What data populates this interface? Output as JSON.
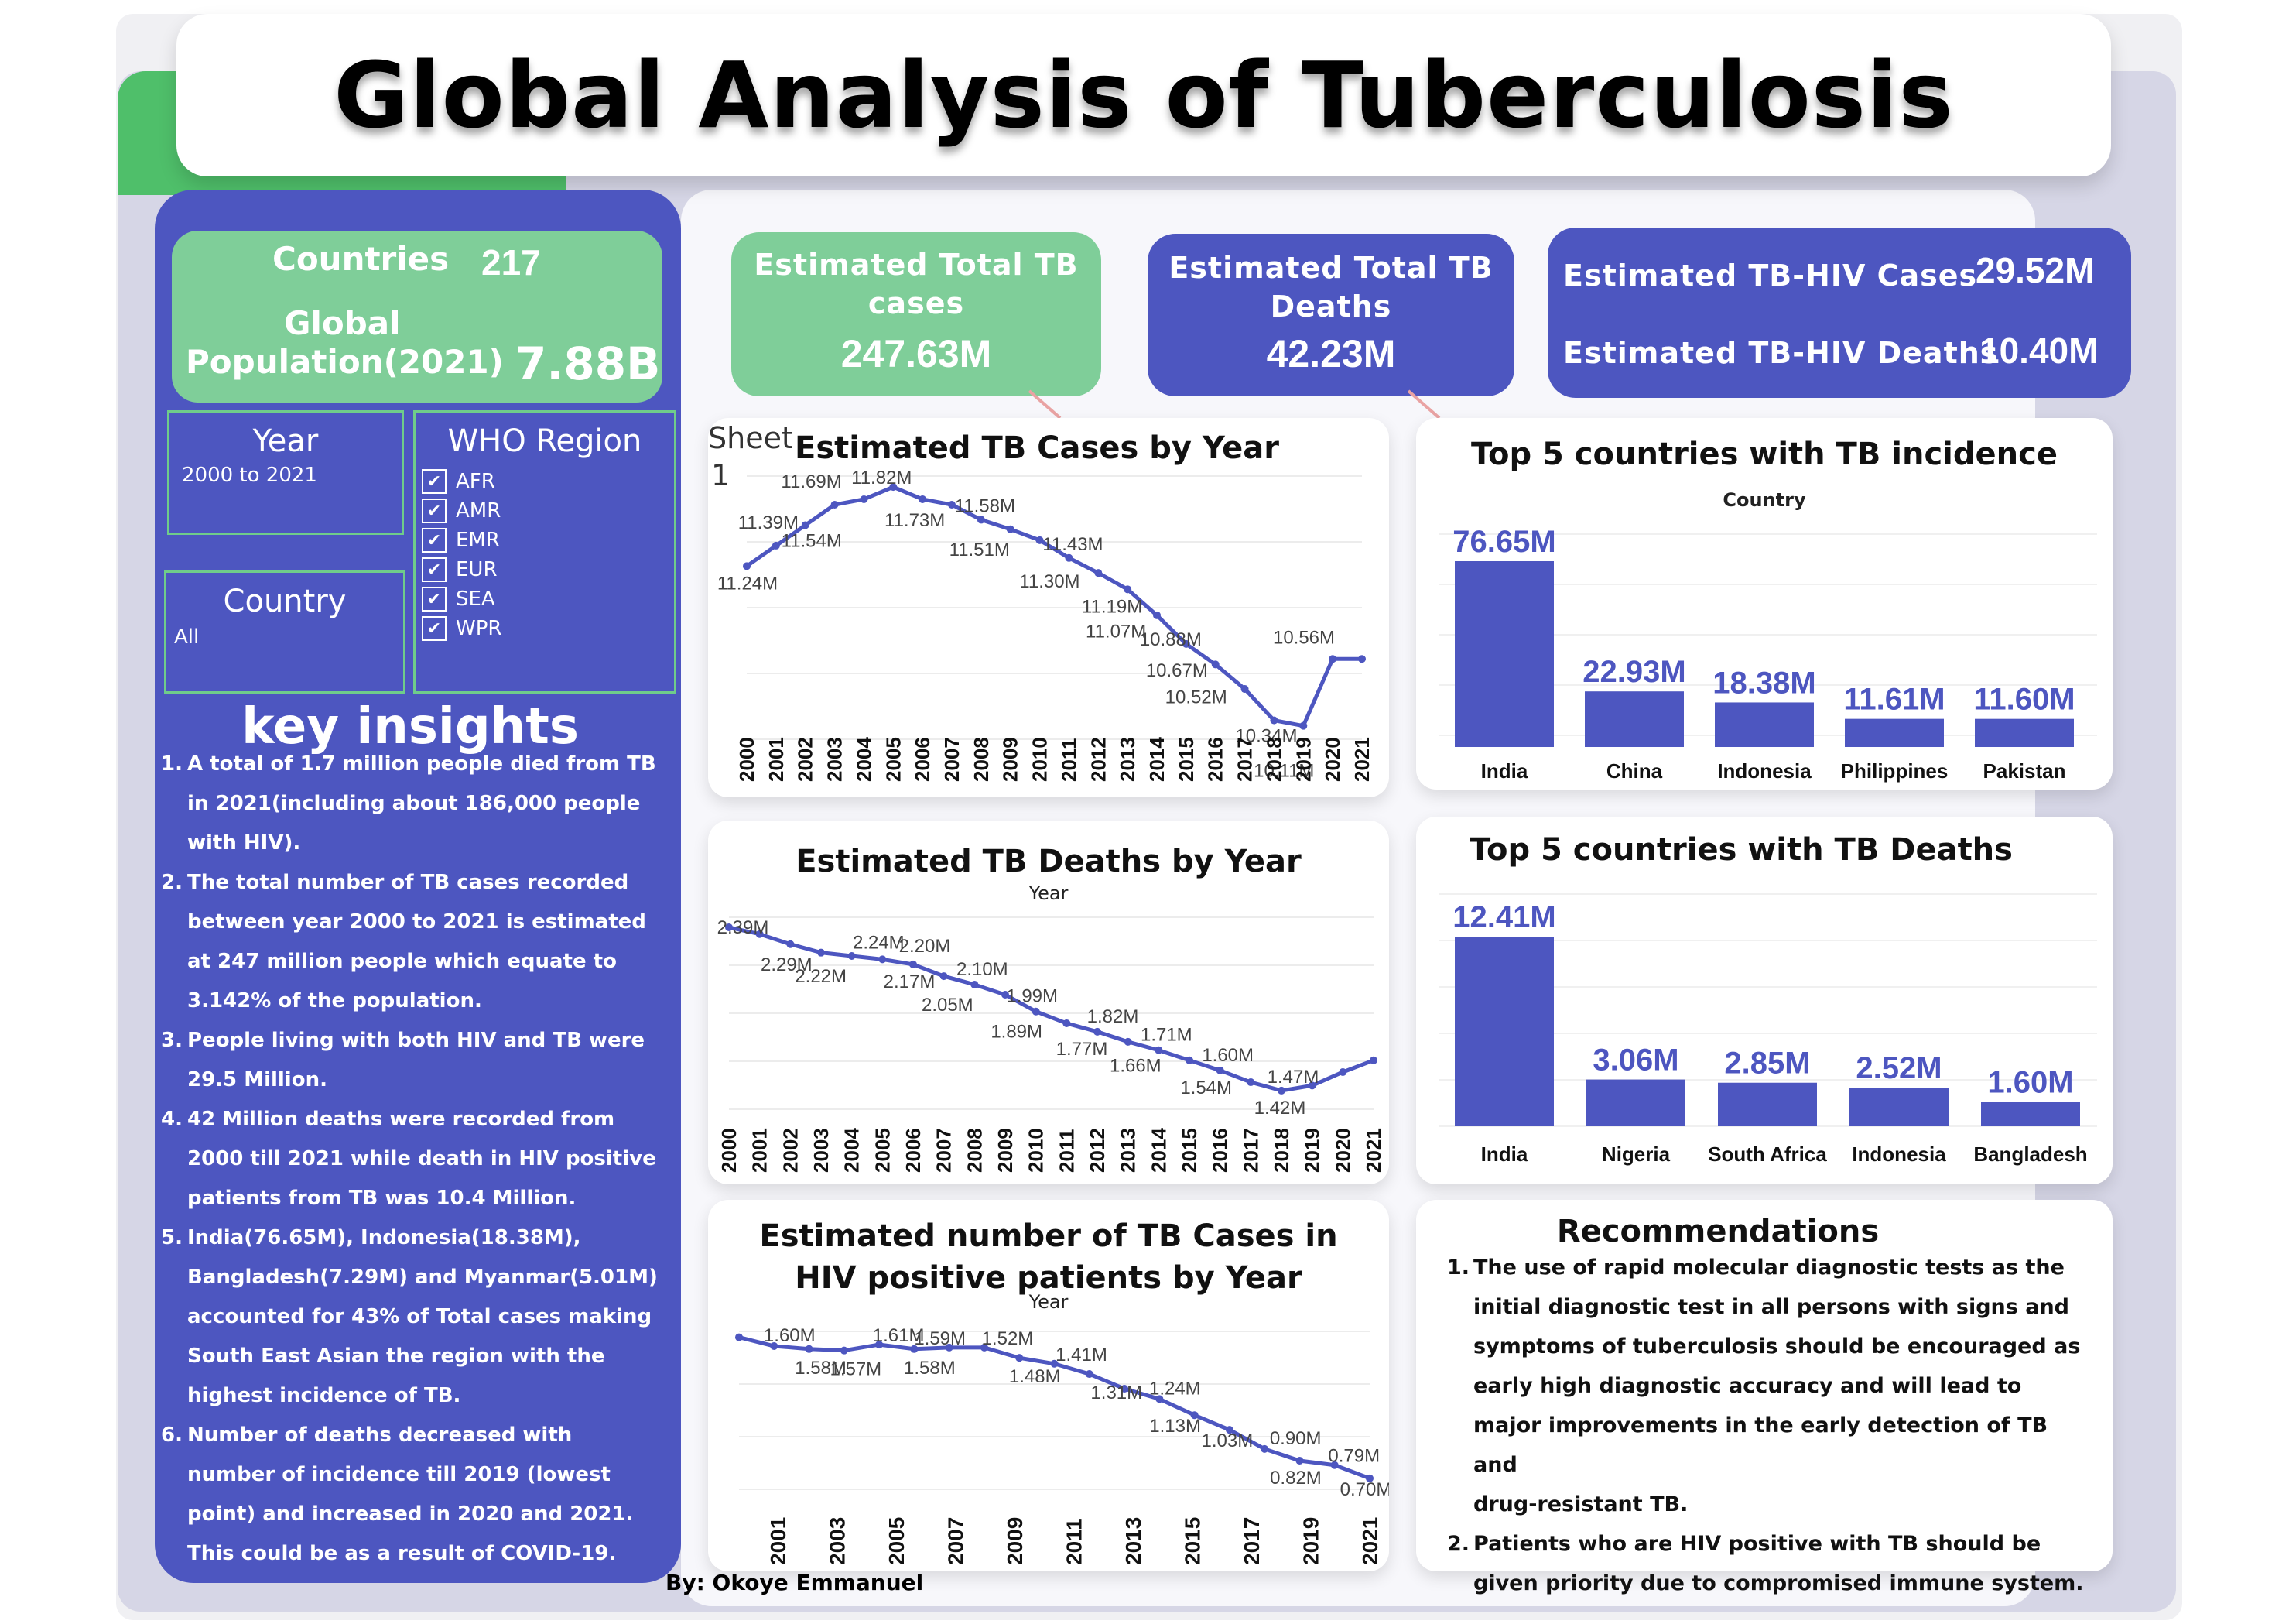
{
  "title": "Global Analysis of Tuberculosis",
  "sidebar": {
    "countries_label": "Countries",
    "countries_value": "217",
    "population_label_1": "Global",
    "population_label_2": "Population(2021)",
    "population_value": "7.88B",
    "year_filter": {
      "title": "Year",
      "value": "2000 to 2021"
    },
    "country_filter": {
      "title": "Country",
      "value": "All"
    },
    "region_filter": {
      "title": "WHO Region",
      "options": [
        "AFR",
        "AMR",
        "EMR",
        "EUR",
        "SEA",
        "WPR"
      ]
    },
    "insights_title": "key insights",
    "insights": [
      {
        "n": "1.",
        "lines": [
          "A total of 1.7 million people died from TB",
          "in 2021(including about 186,000 people",
          "with HIV)."
        ]
      },
      {
        "n": "2.",
        "lines": [
          "The total number of TB cases recorded",
          "between year 2000 to 2021 is estimated",
          "at 247 million people which equate to",
          "3.142% of the population."
        ]
      },
      {
        "n": "3.",
        "lines": [
          "People living with both HIV and TB were",
          "29.5 Million."
        ]
      },
      {
        "n": "4.",
        "lines": [
          "42 Million deaths were recorded from",
          "2000 till 2021 while death in HIV positive",
          "patients from TB was 10.4 Million."
        ]
      },
      {
        "n": "5.",
        "lines": [
          "India(76.65M), Indonesia(18.38M),",
          "Bangladesh(7.29M) and Myanmar(5.01M)",
          "accounted for 43% of Total cases making",
          "South East Asian the region with the",
          "highest incidence of TB."
        ]
      },
      {
        "n": "6.",
        "lines": [
          " Number of deaths decreased with",
          "number of incidence till 2019 (lowest",
          "point) and increased in 2020 and 2021.",
          "This could be as a result of COVID-19."
        ]
      }
    ]
  },
  "kpis": {
    "total_cases": {
      "label_1": "Estimated Total TB",
      "label_2": "cases",
      "value": "247.63M"
    },
    "total_deaths": {
      "label_1": "Estimated Total TB",
      "label_2": "Deaths",
      "value": "42.23M"
    },
    "hiv_cases": {
      "label": "Estimated TB-HIV Cases",
      "value": "29.52M"
    },
    "hiv_deaths": {
      "label": "Estimated TB-HIV Deaths",
      "value": "10.40M"
    }
  },
  "sheet_label_1": "Sheet",
  "sheet_label_2": "1",
  "chart_data": [
    {
      "id": "cases_by_year",
      "type": "line",
      "title": "Estimated TB Cases by Year",
      "x": [
        "2000",
        "2001",
        "2002",
        "2003",
        "2004",
        "2005",
        "2006",
        "2007",
        "2008",
        "2009",
        "2010",
        "2011",
        "2012",
        "2013",
        "2014",
        "2015",
        "2016",
        "2017",
        "2018",
        "2019",
        "2020",
        "2021"
      ],
      "values": [
        11.24,
        11.39,
        11.54,
        11.69,
        11.73,
        11.82,
        11.73,
        11.69,
        11.58,
        11.51,
        11.43,
        11.3,
        11.19,
        11.07,
        10.88,
        10.67,
        10.52,
        10.34,
        10.11,
        10.07,
        10.56,
        null
      ],
      "labels": [
        "11.24M",
        "11.39M",
        "11.54M",
        "11.69M",
        "",
        "11.82M",
        "11.73M",
        "",
        "11.58M",
        "11.51M",
        "11.43M",
        "11.30M",
        "11.19M",
        "11.07M",
        "10.88M",
        "10.67M",
        "10.52M",
        "10.34M",
        "10.11M",
        "",
        "10.56M",
        ""
      ],
      "legend": "Sheet 1"
    },
    {
      "id": "deaths_by_year",
      "type": "line",
      "title": "Estimated TB Deaths by Year",
      "xlabel": "Year",
      "x": [
        "2000",
        "2001",
        "2002",
        "2003",
        "2004",
        "2005",
        "2006",
        "2007",
        "2008",
        "2009",
        "2010",
        "2011",
        "2012",
        "2013",
        "2014",
        "2015",
        "2016",
        "2017",
        "2018",
        "2019",
        "2020",
        "2021"
      ],
      "values": [
        2.39,
        2.29,
        2.22,
        2.24,
        2.2,
        2.17,
        2.1,
        2.05,
        1.99,
        1.89,
        1.82,
        1.77,
        1.71,
        1.66,
        1.6,
        1.54,
        1.47,
        1.42,
        null,
        null,
        null,
        null
      ],
      "labels": [
        "2.39M",
        "2.29M",
        "2.22M",
        "2.24M",
        "2.20M",
        "2.17M",
        "2.10M",
        "2.05M",
        "1.99M",
        "1.89M",
        "1.82M",
        "1.77M",
        "1.71M",
        "1.66M",
        "1.60M",
        "1.54M",
        "1.47M",
        "1.42M",
        "",
        "",
        "",
        ""
      ]
    },
    {
      "id": "hiv_cases_by_year",
      "type": "line",
      "title": "Estimated number of TB Cases in HIV positive patients by Year",
      "xlabel": "Year",
      "x": [
        "2001",
        "2003",
        "2005",
        "2007",
        "2009",
        "2011",
        "2013",
        "2015",
        "2017",
        "2019",
        "2021"
      ],
      "labels": [
        "1.60M",
        "1.58M",
        "1.57M",
        "1.61M",
        "1.58M",
        "1.59M",
        "1.52M",
        "1.48M",
        "1.41M",
        "1.31M",
        "1.24M",
        "1.13M",
        "1.03M",
        "0.90M",
        "0.82M",
        "0.79M",
        "0.70M"
      ]
    },
    {
      "id": "top5_incidence",
      "type": "bar",
      "title": "Top 5 countries with TB incidence",
      "xlabel": "Country",
      "categories": [
        "India",
        "China",
        "Indonesia",
        "Philippines",
        "Pakistan"
      ],
      "values": [
        76.65,
        22.93,
        18.38,
        11.61,
        11.6
      ],
      "labels": [
        "76.65M",
        "22.93M",
        "18.38M",
        "11.61M",
        "11.60M"
      ]
    },
    {
      "id": "top5_deaths",
      "type": "bar",
      "title": "Top 5 countries with TB Deaths",
      "categories": [
        "India",
        "Nigeria",
        "South Africa",
        "Indonesia",
        "Bangladesh"
      ],
      "values": [
        12.41,
        3.06,
        2.85,
        2.52,
        1.6
      ],
      "labels": [
        "12.41M",
        "3.06M",
        "2.85M",
        "2.52M",
        "1.60M"
      ]
    }
  ],
  "recommendations": {
    "title": "Recommendations",
    "items": [
      {
        "n": "1.",
        "lines": [
          "The use of rapid molecular diagnostic tests as the",
          "initial diagnostic test in all persons with signs and",
          "symptoms of tuberculosis should be encouraged as",
          "early high diagnostic accuracy and will lead to",
          "major improvements in the early detection of TB and",
          "drug-resistant TB."
        ]
      },
      {
        "n": "2.",
        "lines": [
          "Patients who are HIV positive with TB should be",
          "given priority due to compromised immune system."
        ]
      }
    ]
  },
  "byline": "By: Okoye Emmanuel",
  "colors": {
    "primary_blue": "#4d56c0",
    "green": "#7fce99",
    "line": "#4d56c0"
  }
}
